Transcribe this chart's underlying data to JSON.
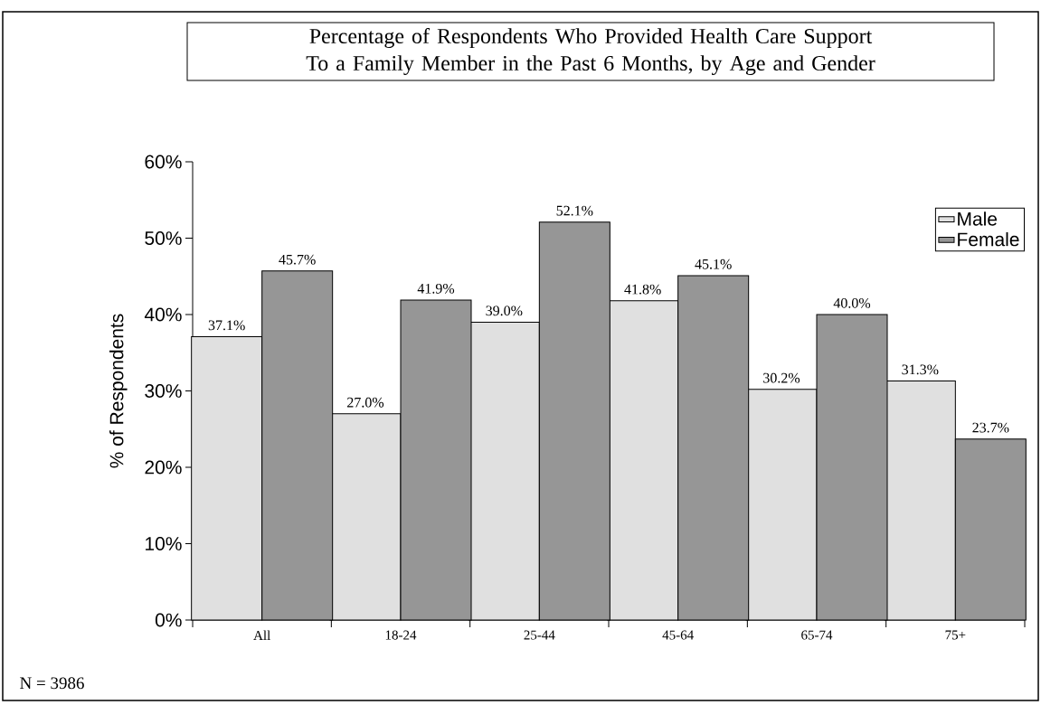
{
  "chart_data": {
    "type": "bar",
    "title": "Percentage of Respondents Who Provided Health Care Support To a Family Member in the Past 6 Months, by Age and Gender",
    "ylabel": "% of Respondents",
    "categories": [
      "All",
      "18-24",
      "25-44",
      "45-64",
      "65-74",
      "75+"
    ],
    "series": [
      {
        "name": "Male",
        "color": "#e0e0e0",
        "values": [
          37.1,
          27.0,
          39.0,
          41.8,
          30.2,
          31.3
        ],
        "value_labels": [
          "37.1%",
          "27.0%",
          "39.0%",
          "41.8%",
          "30.2%",
          "31.3%"
        ]
      },
      {
        "name": "Female",
        "color": "#969696",
        "values": [
          45.7,
          41.9,
          52.1,
          45.1,
          40.0,
          23.7
        ],
        "value_labels": [
          "45.7%",
          "41.9%",
          "52.1%",
          "45.1%",
          "40.0%",
          "23.7%"
        ]
      }
    ],
    "ylim": [
      0,
      60
    ],
    "yticks": [
      {
        "value": 0,
        "label": "0%"
      },
      {
        "value": 10,
        "label": "10%"
      },
      {
        "value": 20,
        "label": "20%"
      },
      {
        "value": 30,
        "label": "30%"
      },
      {
        "value": 40,
        "label": "40%"
      },
      {
        "value": 50,
        "label": "50%"
      },
      {
        "value": 60,
        "label": "60%"
      }
    ],
    "legend": "top right",
    "annotations": [
      "N = 3986"
    ]
  }
}
